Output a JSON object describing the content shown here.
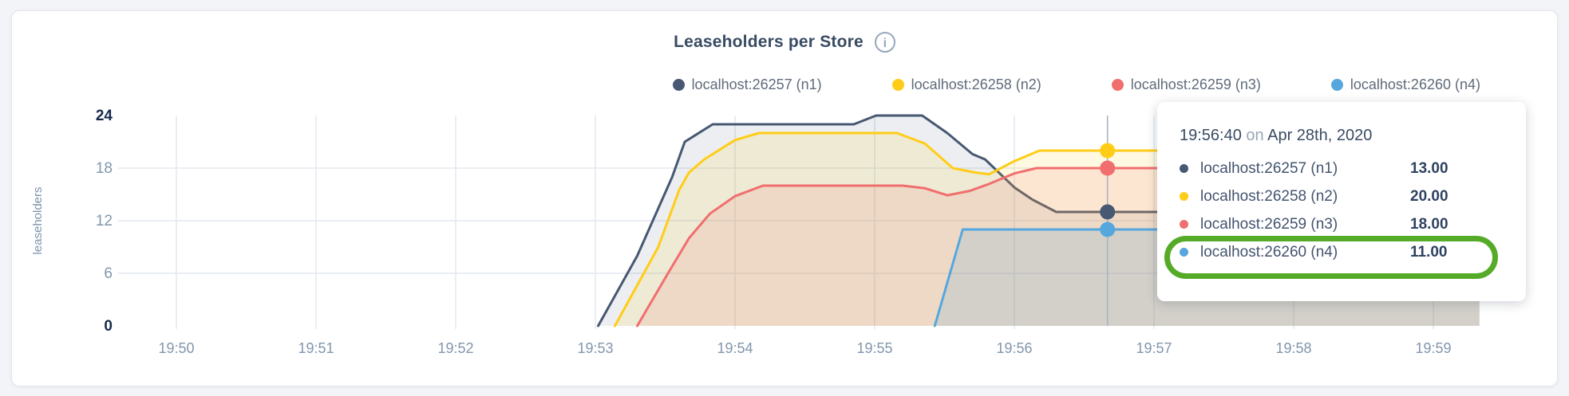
{
  "page": {
    "title": "Leaseholders per Store",
    "info_icon_glyph": "i",
    "colors": {
      "n1": "#475872",
      "n2": "#ffcd17",
      "n3": "#f16e6e",
      "n4": "#56a7dd",
      "grid": "#e4e9f1",
      "tick_text": "#8296ac",
      "tick_text_bold": "#16294d",
      "hover_line": "#aab3bf",
      "highlight_green": "#55ab28"
    }
  },
  "legend": {
    "items": [
      {
        "label": "localhost:26257 (n1)",
        "color": "#475872"
      },
      {
        "label": "localhost:26258 (n2)",
        "color": "#ffcd17"
      },
      {
        "label": "localhost:26259 (n3)",
        "color": "#f16e6e"
      },
      {
        "label": "localhost:26260 (n4)",
        "color": "#56a7dd"
      }
    ]
  },
  "chart_data": {
    "type": "area",
    "title": "Leaseholders per Store",
    "ylabel": "leaseholders",
    "xlabel": "",
    "ylim": [
      0,
      24
    ],
    "y_ticks": [
      0,
      6,
      12,
      18,
      24
    ],
    "y_gridlines": [
      6,
      12,
      18
    ],
    "y_bold_ticks": [
      0,
      24
    ],
    "x_ticks": [
      {
        "t": 0,
        "label": "19:50"
      },
      {
        "t": 1,
        "label": "19:51"
      },
      {
        "t": 2,
        "label": "19:52"
      },
      {
        "t": 3,
        "label": "19:53"
      },
      {
        "t": 4,
        "label": "19:54"
      },
      {
        "t": 5,
        "label": "19:55"
      },
      {
        "t": 6,
        "label": "19:56"
      },
      {
        "t": 7,
        "label": "19:57"
      },
      {
        "t": 8,
        "label": "19:58"
      },
      {
        "t": 9,
        "label": "19:59"
      }
    ],
    "x_unit": "minutes after 19:50",
    "grid": true,
    "legend_position": "top-right",
    "series": [
      {
        "name": "localhost:26257 (n1)",
        "color": "#475872",
        "fill_opacity": 0.1,
        "points": [
          [
            3.02,
            0
          ],
          [
            3.3,
            8
          ],
          [
            3.55,
            17
          ],
          [
            3.64,
            21
          ],
          [
            3.72,
            21.8
          ],
          [
            3.84,
            23
          ],
          [
            4.85,
            23
          ],
          [
            5.01,
            24
          ],
          [
            5.34,
            24
          ],
          [
            5.52,
            22
          ],
          [
            5.7,
            19.6
          ],
          [
            5.79,
            19
          ],
          [
            6.0,
            15.8
          ],
          [
            6.13,
            14.4
          ],
          [
            6.3,
            13
          ],
          [
            9.33,
            13
          ]
        ]
      },
      {
        "name": "localhost:26258 (n2)",
        "color": "#ffcd17",
        "fill_opacity": 0.13,
        "points": [
          [
            3.14,
            0
          ],
          [
            3.45,
            9
          ],
          [
            3.6,
            15.5
          ],
          [
            3.67,
            17.5
          ],
          [
            3.78,
            19
          ],
          [
            4.0,
            21.2
          ],
          [
            4.17,
            22
          ],
          [
            5.16,
            22
          ],
          [
            5.36,
            20.8
          ],
          [
            5.56,
            18
          ],
          [
            5.72,
            17.5
          ],
          [
            5.82,
            17.3
          ],
          [
            6.0,
            18.8
          ],
          [
            6.18,
            20
          ],
          [
            9.33,
            20
          ]
        ]
      },
      {
        "name": "localhost:26259 (n3)",
        "color": "#f16e6e",
        "fill_opacity": 0.13,
        "points": [
          [
            3.3,
            0
          ],
          [
            3.52,
            6
          ],
          [
            3.67,
            10
          ],
          [
            3.82,
            12.8
          ],
          [
            4.0,
            14.8
          ],
          [
            4.2,
            16
          ],
          [
            5.2,
            16
          ],
          [
            5.36,
            15.7
          ],
          [
            5.52,
            14.9
          ],
          [
            5.68,
            15.4
          ],
          [
            5.82,
            16.2
          ],
          [
            6.0,
            17.4
          ],
          [
            6.16,
            18
          ],
          [
            9.33,
            18
          ]
        ]
      },
      {
        "name": "localhost:26260 (n4)",
        "color": "#56a7dd",
        "fill_opacity": 0.18,
        "points": [
          [
            5.43,
            0
          ],
          [
            5.63,
            11
          ],
          [
            9.33,
            11
          ]
        ]
      }
    ],
    "hover": {
      "t": 6.667,
      "time_label": "19:56:40",
      "values": [
        13,
        20,
        18,
        11
      ]
    }
  },
  "tooltip": {
    "time": "19:56:40",
    "on_word": "on",
    "date": "Apr 28th, 2020",
    "rows": [
      {
        "label": "localhost:26257 (n1)",
        "value": "13.00",
        "color": "#475872"
      },
      {
        "label": "localhost:26258 (n2)",
        "value": "20.00",
        "color": "#ffcd17"
      },
      {
        "label": "localhost:26259 (n3)",
        "value": "18.00",
        "color": "#f16e6e"
      },
      {
        "label": "localhost:26260 (n4)",
        "value": "11.00",
        "color": "#56a7dd",
        "highlighted": true
      }
    ]
  }
}
